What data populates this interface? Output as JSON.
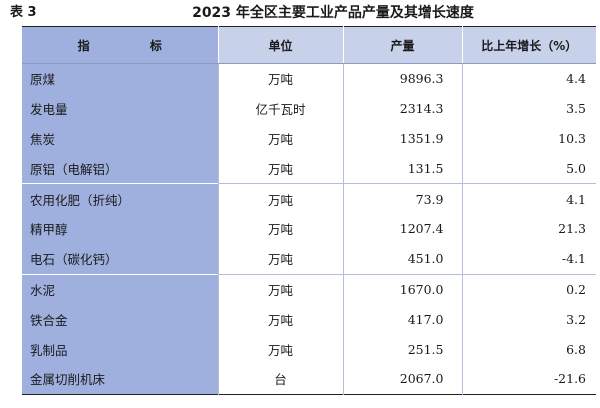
{
  "caption": {
    "table_no": "表 3",
    "title": "2023 年全区主要工业产品产量及其增长速度"
  },
  "headers": [
    "指 标",
    "单位",
    "产量",
    "比上年增长（%）"
  ],
  "rows": [
    {
      "name": "原煤",
      "unit": "万吨",
      "output": "9896.3",
      "growth": "4.4"
    },
    {
      "name": "发电量",
      "unit": "亿千瓦时",
      "output": "2314.3",
      "growth": "3.5"
    },
    {
      "name": "焦炭",
      "unit": "万吨",
      "output": "1351.9",
      "growth": "10.3"
    },
    {
      "name": "原铝（电解铝）",
      "unit": "万吨",
      "output": "131.5",
      "growth": "5.0"
    },
    {
      "name": "农用化肥（折纯）",
      "unit": "万吨",
      "output": "73.9",
      "growth": "4.1"
    },
    {
      "name": "精甲醇",
      "unit": "万吨",
      "output": "1207.4",
      "growth": "21.3"
    },
    {
      "name": "电石（碳化钙）",
      "unit": "万吨",
      "output": "451.0",
      "growth": "-4.1"
    },
    {
      "name": "水泥",
      "unit": "万吨",
      "output": "1670.0",
      "growth": "0.2"
    },
    {
      "name": "铁合金",
      "unit": "万吨",
      "output": "417.0",
      "growth": "3.2"
    },
    {
      "name": "乳制品",
      "unit": "万吨",
      "output": "251.5",
      "growth": "6.8"
    },
    {
      "name": "金属切削机床",
      "unit": "台",
      "output": "2067.0",
      "growth": "-21.6"
    }
  ]
}
